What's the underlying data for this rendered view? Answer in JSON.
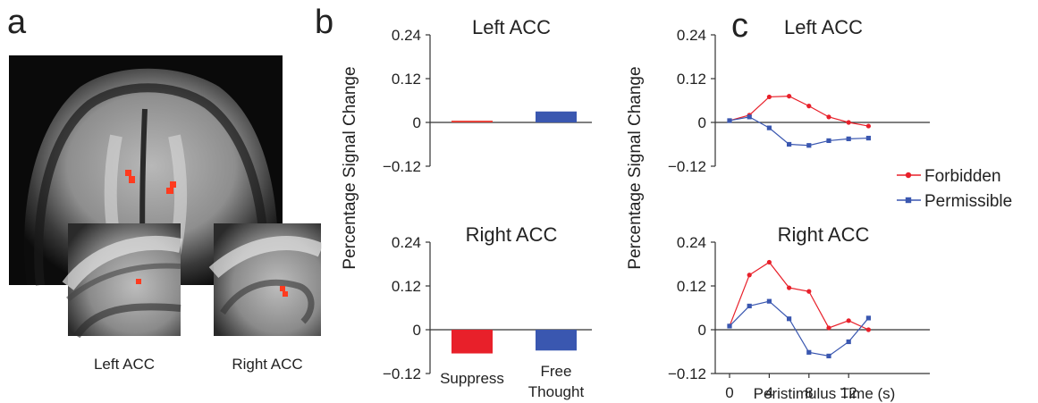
{
  "panels": {
    "a": {
      "letter": "a",
      "captions": [
        "Left ACC",
        "Right ACC"
      ]
    },
    "b": {
      "letter": "b"
    },
    "c": {
      "letter": "c"
    }
  },
  "chart_data": [
    {
      "id": "b-left",
      "type": "bar",
      "title": "Left ACC",
      "ylabel": "Percentage Signal Change",
      "ylim": [
        -0.12,
        0.24
      ],
      "yticks": [
        "0.24",
        "0.12",
        "0",
        "−0.12"
      ],
      "categories": [
        "Suppress",
        "Free Thought"
      ],
      "values": [
        0.003,
        0.03
      ],
      "colors": [
        "#e8453c",
        "#3a57b0"
      ],
      "show_category_labels": false
    },
    {
      "id": "b-right",
      "type": "bar",
      "title": "Right ACC",
      "ylabel": "Percentage Signal Change",
      "ylim": [
        -0.12,
        0.24
      ],
      "yticks": [
        "0.24",
        "0.12",
        "0",
        "−0.12"
      ],
      "categories": [
        "Suppress",
        "Free Thought"
      ],
      "values": [
        -0.065,
        -0.057
      ],
      "colors": [
        "#e8202a",
        "#3a57b0"
      ],
      "show_category_labels": true
    },
    {
      "id": "c-left",
      "type": "line",
      "title": "Left ACC",
      "ylabel": "Percentage Signal Change",
      "ylim": [
        -0.12,
        0.24
      ],
      "yticks": [
        "0.24",
        "0.12",
        "0",
        "−0.12"
      ],
      "x": [
        0,
        2,
        4,
        6,
        8,
        10,
        12,
        14
      ],
      "series": [
        {
          "name": "Forbidden",
          "color": "#e8202a",
          "marker": "circle",
          "values": [
            0.005,
            0.02,
            0.07,
            0.072,
            0.045,
            0.015,
            0.0,
            -0.01
          ]
        },
        {
          "name": "Permissible",
          "color": "#3a57b0",
          "marker": "square",
          "values": [
            0.005,
            0.015,
            -0.015,
            -0.06,
            -0.063,
            -0.05,
            -0.045,
            -0.043
          ]
        }
      ],
      "legend": "right"
    },
    {
      "id": "c-right",
      "type": "line",
      "title": "Right ACC",
      "ylabel": "Percentage Signal Change",
      "xlabel": "Peristimulus Time (s)",
      "ylim": [
        -0.12,
        0.24
      ],
      "yticks": [
        "0.24",
        "0.12",
        "0",
        "−0.12"
      ],
      "xticks": [
        "0",
        "4",
        "8",
        "12"
      ],
      "x": [
        0,
        2,
        4,
        6,
        8,
        10,
        12,
        14
      ],
      "series": [
        {
          "name": "Forbidden",
          "color": "#e8202a",
          "marker": "circle",
          "values": [
            0.01,
            0.15,
            0.185,
            0.115,
            0.105,
            0.005,
            0.025,
            0.0
          ]
        },
        {
          "name": "Permissible",
          "color": "#3a57b0",
          "marker": "square",
          "values": [
            0.01,
            0.065,
            0.078,
            0.03,
            -0.062,
            -0.072,
            -0.033,
            0.032
          ]
        }
      ]
    }
  ]
}
